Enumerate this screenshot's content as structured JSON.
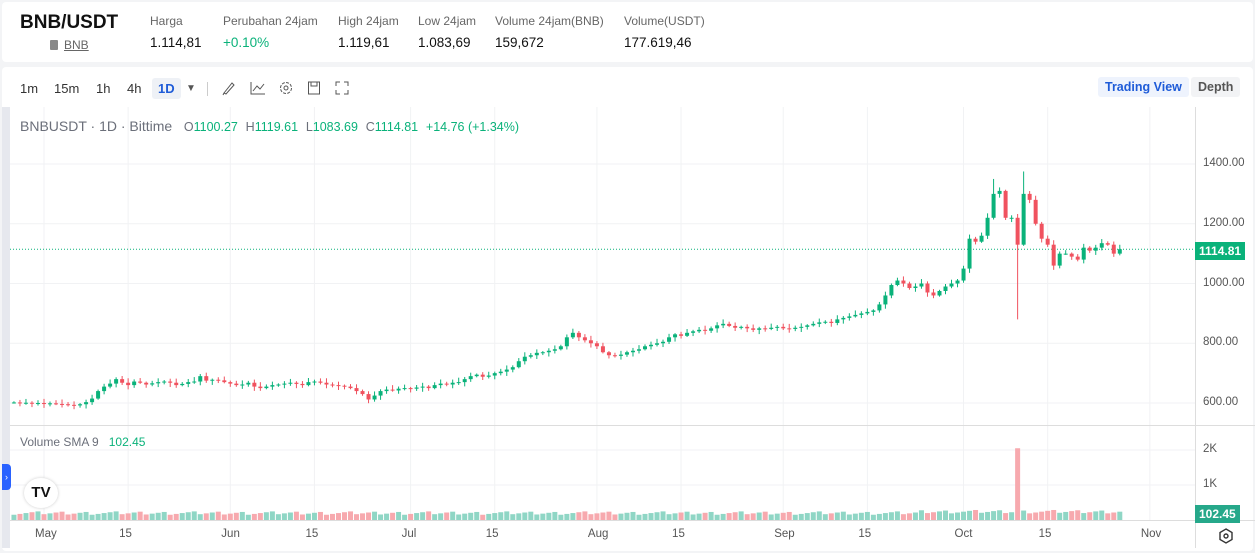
{
  "header": {
    "pair": "BNB/USDT",
    "asset_link": "BNB",
    "stats": [
      {
        "label": "Harga",
        "value": "1.114,81"
      },
      {
        "label": "Perubahan 24jam",
        "value": "+0.10%"
      },
      {
        "label": "High 24jam",
        "value": "1.119,61"
      },
      {
        "label": "Low 24jam",
        "value": "1.083,69"
      },
      {
        "label": "Volume 24jam(BNB)",
        "value": "159,672"
      },
      {
        "label": "Volume(USDT)",
        "value": "177.619,46"
      }
    ]
  },
  "toolbar": {
    "intervals": [
      "1m",
      "15m",
      "1h",
      "4h",
      "1D"
    ],
    "active": "1D",
    "icons": [
      "chevron-down-icon",
      "draw-icon",
      "indicator-icon",
      "gear-icon",
      "save-icon",
      "fullscreen-icon"
    ],
    "trading_view": "Trading View",
    "depth": "Depth"
  },
  "legend": {
    "title": "BNBUSDT · 1D · Bittime",
    "o_label": "O",
    "o": "1100.27",
    "h_label": "H",
    "h": "1119.61",
    "l_label": "L",
    "l": "1083.69",
    "c_label": "C",
    "c": "1114.81",
    "change": "+14.76 (+1.34%)"
  },
  "volume_legend": {
    "label": "Volume SMA 9",
    "value": "102.45"
  },
  "colors": {
    "up": "#0ab27a",
    "down": "#f0525f",
    "vol_up": "#8fd6c5",
    "vol_down": "#f7a9ae"
  },
  "chart_data": {
    "type": "candlestick",
    "start_date": "2025-04-26",
    "closes": [
      602,
      600,
      601,
      599,
      600,
      598,
      599,
      597,
      596,
      594,
      592,
      596,
      603,
      615,
      640,
      655,
      665,
      680,
      668,
      660,
      672,
      668,
      662,
      666,
      670,
      672,
      668,
      660,
      664,
      670,
      672,
      690,
      675,
      678,
      676,
      670,
      665,
      660,
      662,
      668,
      655,
      650,
      655,
      660,
      662,
      665,
      668,
      664,
      660,
      670,
      672,
      668,
      662,
      660,
      658,
      655,
      650,
      640,
      630,
      612,
      625,
      640,
      645,
      642,
      648,
      650,
      648,
      652,
      655,
      650,
      660,
      665,
      662,
      668,
      670,
      680,
      690,
      695,
      688,
      692,
      700,
      705,
      712,
      720,
      740,
      755,
      760,
      768,
      770,
      775,
      780,
      790,
      820,
      835,
      820,
      810,
      800,
      790,
      770,
      760,
      758,
      762,
      770,
      775,
      780,
      790,
      795,
      800,
      805,
      820,
      830,
      825,
      835,
      840,
      845,
      842,
      850,
      860,
      865,
      858,
      852,
      855,
      850,
      845,
      850,
      848,
      852,
      855,
      850,
      848,
      852,
      855,
      860,
      865,
      870,
      872,
      868,
      880,
      885,
      890,
      895,
      900,
      905,
      910,
      930,
      960,
      995,
      1010,
      1000,
      985,
      990,
      1000,
      970,
      960,
      975,
      990,
      1000,
      1010,
      1050,
      1150,
      1140,
      1160,
      1220,
      1300,
      1310,
      1220,
      1220,
      1130,
      1300,
      1280,
      1200,
      1150,
      1130,
      1060,
      1100,
      1100,
      1090,
      1080,
      1120,
      1110,
      1120,
      1135,
      1130,
      1100,
      1114.81
    ],
    "extreme_wicks": [
      {
        "date": "2025-10-10",
        "low": 880
      },
      {
        "date": "2025-10-11",
        "high": 1375
      },
      {
        "date": "2025-10-06",
        "high": 1350
      }
    ],
    "volume_spike": {
      "date": "2025-10-10",
      "volume": 2050
    },
    "current_price": "1114.81",
    "y_ticks": [
      "1400.00",
      "1200.00",
      "1000.00",
      "800.00",
      "600.00"
    ],
    "y_values": [
      1400,
      1200,
      1000,
      800,
      600
    ],
    "vol_ticks": [
      "2K",
      "1K"
    ],
    "vol_values": [
      2000,
      1000
    ],
    "x_ticks": [
      {
        "label": "May",
        "date": "2025-05-01"
      },
      {
        "label": "15",
        "date": "2025-05-15"
      },
      {
        "label": "Jun",
        "date": "2025-06-01"
      },
      {
        "label": "15",
        "date": "2025-06-15"
      },
      {
        "label": "Jul",
        "date": "2025-07-01"
      },
      {
        "label": "15",
        "date": "2025-07-15"
      },
      {
        "label": "Aug",
        "date": "2025-08-01"
      },
      {
        "label": "15",
        "date": "2025-08-15"
      },
      {
        "label": "Sep",
        "date": "2025-09-01"
      },
      {
        "label": "15",
        "date": "2025-09-15"
      },
      {
        "label": "Oct",
        "date": "2025-10-01"
      },
      {
        "label": "15",
        "date": "2025-10-15"
      },
      {
        "label": "Nov",
        "date": "2025-11-01"
      }
    ]
  }
}
